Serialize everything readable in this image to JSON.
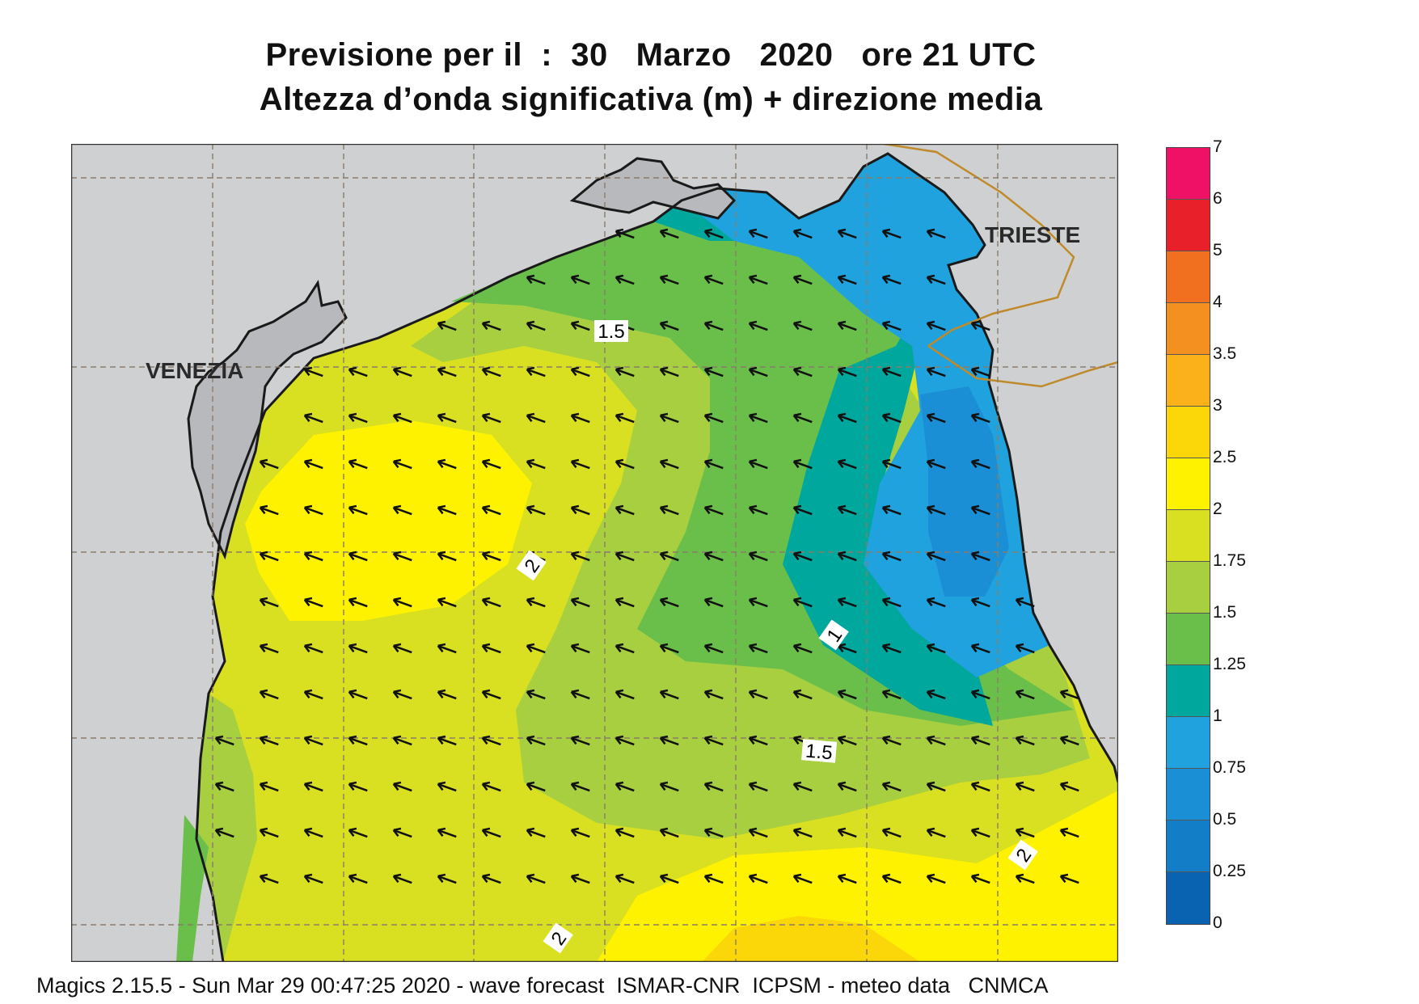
{
  "title_line1": "Previsione per il  :  30   Marzo   2020   ore 21 UTC",
  "title_line2": "Altezza d’onda significativa (m) + direzione media",
  "cities": {
    "venezia": "VENEZIA",
    "trieste": "TRIESTE"
  },
  "contour_labels": [
    "1.5",
    "2",
    "1",
    "1.5",
    "2",
    "2"
  ],
  "colorbar": {
    "ticks": [
      "7",
      "6",
      "5",
      "4",
      "3.5",
      "3",
      "2.5",
      "2",
      "1.75",
      "1.5",
      "1.25",
      "1",
      "0.75",
      "0.5",
      "0.25",
      "0"
    ],
    "colors_top_to_bottom": [
      "#ee1166",
      "#e8202a",
      "#f07020",
      "#f39020",
      "#fbb21a",
      "#fbd70a",
      "#fff200",
      "#d9e021",
      "#a8cf3f",
      "#6abf4b",
      "#00a79d",
      "#1fa2dd",
      "#1b8fd6",
      "#137ec8",
      "#0a63b0"
    ]
  },
  "colors": {
    "land": "#cfd0d2",
    "coast": "#1a1a1a",
    "border": "#c08a2a",
    "grid": "#9a8c7a",
    "arrow": "#111111"
  },
  "footer": "Magics 2.15.5 - Sun Mar 29 00:47:25 2020 - wave forecast  ISMAR-CNR  ICPSM - meteo data   CNMCA"
}
